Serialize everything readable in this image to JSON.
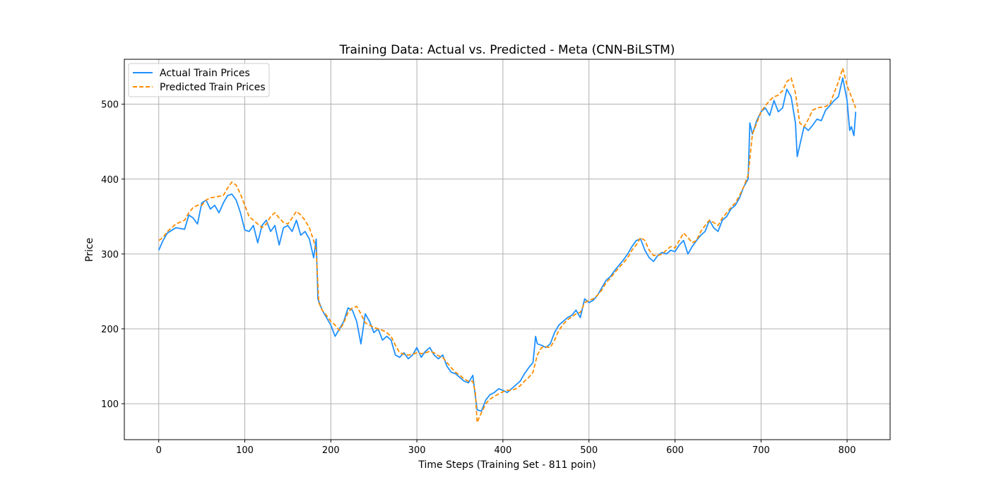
{
  "chart_data": {
    "type": "line",
    "title": "Training Data: Actual vs. Predicted - Meta (CNN-BiLSTM)",
    "xlabel": "Time Steps (Training Set - 811 poin)",
    "ylabel": "Price",
    "xlim": [
      -40,
      850
    ],
    "ylim": [
      52,
      560
    ],
    "xticks": [
      0,
      100,
      200,
      300,
      400,
      500,
      600,
      700,
      800
    ],
    "yticks": [
      100,
      200,
      300,
      400,
      500
    ],
    "grid": true,
    "legend_position": "top-left",
    "series": [
      {
        "name": "Actual Train Prices",
        "color": "#1e90ff",
        "style": "solid",
        "points": [
          [
            0,
            305
          ],
          [
            5,
            318
          ],
          [
            10,
            328
          ],
          [
            20,
            335
          ],
          [
            30,
            333
          ],
          [
            35,
            352
          ],
          [
            40,
            348
          ],
          [
            45,
            340
          ],
          [
            50,
            368
          ],
          [
            55,
            372
          ],
          [
            60,
            360
          ],
          [
            65,
            365
          ],
          [
            70,
            355
          ],
          [
            75,
            368
          ],
          [
            80,
            378
          ],
          [
            85,
            380
          ],
          [
            90,
            372
          ],
          [
            95,
            355
          ],
          [
            100,
            332
          ],
          [
            105,
            330
          ],
          [
            110,
            338
          ],
          [
            115,
            315
          ],
          [
            120,
            338
          ],
          [
            125,
            345
          ],
          [
            130,
            330
          ],
          [
            135,
            338
          ],
          [
            140,
            312
          ],
          [
            145,
            335
          ],
          [
            150,
            338
          ],
          [
            155,
            330
          ],
          [
            160,
            345
          ],
          [
            165,
            325
          ],
          [
            170,
            330
          ],
          [
            175,
            320
          ],
          [
            180,
            295
          ],
          [
            183,
            320
          ],
          [
            185,
            240
          ],
          [
            190,
            225
          ],
          [
            195,
            215
          ],
          [
            200,
            205
          ],
          [
            205,
            190
          ],
          [
            210,
            200
          ],
          [
            215,
            210
          ],
          [
            220,
            228
          ],
          [
            225,
            225
          ],
          [
            230,
            210
          ],
          [
            235,
            180
          ],
          [
            240,
            220
          ],
          [
            245,
            210
          ],
          [
            250,
            195
          ],
          [
            255,
            200
          ],
          [
            260,
            185
          ],
          [
            265,
            190
          ],
          [
            270,
            185
          ],
          [
            275,
            165
          ],
          [
            280,
            162
          ],
          [
            285,
            168
          ],
          [
            290,
            160
          ],
          [
            295,
            165
          ],
          [
            300,
            175
          ],
          [
            305,
            162
          ],
          [
            310,
            170
          ],
          [
            315,
            175
          ],
          [
            320,
            165
          ],
          [
            325,
            160
          ],
          [
            330,
            165
          ],
          [
            335,
            150
          ],
          [
            340,
            142
          ],
          [
            345,
            140
          ],
          [
            350,
            135
          ],
          [
            355,
            130
          ],
          [
            360,
            128
          ],
          [
            365,
            138
          ],
          [
            368,
            110
          ],
          [
            370,
            92
          ],
          [
            375,
            90
          ],
          [
            380,
            105
          ],
          [
            385,
            112
          ],
          [
            390,
            115
          ],
          [
            395,
            120
          ],
          [
            400,
            118
          ],
          [
            405,
            115
          ],
          [
            410,
            120
          ],
          [
            415,
            125
          ],
          [
            420,
            130
          ],
          [
            425,
            140
          ],
          [
            430,
            148
          ],
          [
            435,
            155
          ],
          [
            438,
            190
          ],
          [
            440,
            180
          ],
          [
            445,
            178
          ],
          [
            450,
            175
          ],
          [
            455,
            180
          ],
          [
            460,
            195
          ],
          [
            465,
            205
          ],
          [
            470,
            210
          ],
          [
            475,
            215
          ],
          [
            480,
            218
          ],
          [
            485,
            225
          ],
          [
            490,
            215
          ],
          [
            495,
            240
          ],
          [
            500,
            235
          ],
          [
            505,
            238
          ],
          [
            510,
            245
          ],
          [
            515,
            255
          ],
          [
            520,
            265
          ],
          [
            525,
            270
          ],
          [
            530,
            278
          ],
          [
            535,
            285
          ],
          [
            540,
            292
          ],
          [
            545,
            300
          ],
          [
            550,
            310
          ],
          [
            555,
            318
          ],
          [
            560,
            320
          ],
          [
            565,
            305
          ],
          [
            570,
            295
          ],
          [
            575,
            290
          ],
          [
            580,
            298
          ],
          [
            585,
            302
          ],
          [
            590,
            300
          ],
          [
            595,
            305
          ],
          [
            600,
            303
          ],
          [
            605,
            312
          ],
          [
            610,
            318
          ],
          [
            615,
            300
          ],
          [
            620,
            310
          ],
          [
            625,
            318
          ],
          [
            630,
            325
          ],
          [
            635,
            330
          ],
          [
            640,
            345
          ],
          [
            645,
            335
          ],
          [
            650,
            330
          ],
          [
            655,
            345
          ],
          [
            660,
            350
          ],
          [
            665,
            360
          ],
          [
            670,
            365
          ],
          [
            675,
            375
          ],
          [
            680,
            390
          ],
          [
            685,
            400
          ],
          [
            687,
            475
          ],
          [
            690,
            460
          ],
          [
            695,
            478
          ],
          [
            700,
            490
          ],
          [
            705,
            495
          ],
          [
            710,
            485
          ],
          [
            715,
            505
          ],
          [
            720,
            490
          ],
          [
            725,
            495
          ],
          [
            730,
            520
          ],
          [
            735,
            510
          ],
          [
            740,
            475
          ],
          [
            742,
            430
          ],
          [
            745,
            445
          ],
          [
            750,
            470
          ],
          [
            755,
            465
          ],
          [
            760,
            472
          ],
          [
            765,
            480
          ],
          [
            770,
            478
          ],
          [
            775,
            492
          ],
          [
            780,
            498
          ],
          [
            785,
            505
          ],
          [
            790,
            510
          ],
          [
            795,
            535
          ],
          [
            800,
            505
          ],
          [
            803,
            465
          ],
          [
            805,
            470
          ],
          [
            808,
            458
          ],
          [
            810,
            490
          ]
        ]
      },
      {
        "name": "Predicted Train Prices",
        "color": "#ff8c00",
        "style": "dashed",
        "points": [
          [
            0,
            318
          ],
          [
            5,
            322
          ],
          [
            10,
            330
          ],
          [
            20,
            340
          ],
          [
            30,
            345
          ],
          [
            35,
            355
          ],
          [
            40,
            362
          ],
          [
            45,
            365
          ],
          [
            50,
            365
          ],
          [
            55,
            372
          ],
          [
            60,
            375
          ],
          [
            65,
            376
          ],
          [
            70,
            377
          ],
          [
            75,
            378
          ],
          [
            80,
            388
          ],
          [
            85,
            396
          ],
          [
            90,
            392
          ],
          [
            95,
            380
          ],
          [
            100,
            365
          ],
          [
            105,
            350
          ],
          [
            110,
            345
          ],
          [
            115,
            340
          ],
          [
            120,
            335
          ],
          [
            125,
            340
          ],
          [
            130,
            350
          ],
          [
            135,
            355
          ],
          [
            140,
            348
          ],
          [
            145,
            342
          ],
          [
            150,
            340
          ],
          [
            155,
            348
          ],
          [
            160,
            357
          ],
          [
            165,
            352
          ],
          [
            170,
            345
          ],
          [
            175,
            335
          ],
          [
            180,
            318
          ],
          [
            183,
            305
          ],
          [
            186,
            235
          ],
          [
            190,
            225
          ],
          [
            195,
            218
          ],
          [
            200,
            210
          ],
          [
            205,
            205
          ],
          [
            210,
            198
          ],
          [
            215,
            208
          ],
          [
            220,
            222
          ],
          [
            225,
            228
          ],
          [
            230,
            230
          ],
          [
            235,
            220
          ],
          [
            240,
            208
          ],
          [
            245,
            205
          ],
          [
            250,
            202
          ],
          [
            255,
            200
          ],
          [
            260,
            198
          ],
          [
            265,
            195
          ],
          [
            270,
            190
          ],
          [
            275,
            178
          ],
          [
            280,
            168
          ],
          [
            285,
            166
          ],
          [
            290,
            165
          ],
          [
            295,
            166
          ],
          [
            300,
            168
          ],
          [
            305,
            167
          ],
          [
            310,
            168
          ],
          [
            315,
            170
          ],
          [
            320,
            168
          ],
          [
            325,
            164
          ],
          [
            330,
            162
          ],
          [
            335,
            155
          ],
          [
            340,
            148
          ],
          [
            345,
            142
          ],
          [
            350,
            138
          ],
          [
            355,
            133
          ],
          [
            360,
            130
          ],
          [
            365,
            130
          ],
          [
            368,
            115
          ],
          [
            370,
            75
          ],
          [
            375,
            88
          ],
          [
            380,
            100
          ],
          [
            385,
            106
          ],
          [
            390,
            110
          ],
          [
            395,
            113
          ],
          [
            400,
            116
          ],
          [
            405,
            118
          ],
          [
            410,
            118
          ],
          [
            415,
            120
          ],
          [
            420,
            124
          ],
          [
            425,
            130
          ],
          [
            430,
            135
          ],
          [
            435,
            142
          ],
          [
            440,
            165
          ],
          [
            445,
            175
          ],
          [
            450,
            176
          ],
          [
            455,
            175
          ],
          [
            460,
            185
          ],
          [
            465,
            198
          ],
          [
            470,
            206
          ],
          [
            475,
            212
          ],
          [
            480,
            216
          ],
          [
            485,
            220
          ],
          [
            490,
            222
          ],
          [
            495,
            235
          ],
          [
            500,
            238
          ],
          [
            505,
            240
          ],
          [
            510,
            245
          ],
          [
            515,
            252
          ],
          [
            520,
            262
          ],
          [
            525,
            268
          ],
          [
            530,
            275
          ],
          [
            535,
            282
          ],
          [
            540,
            288
          ],
          [
            545,
            295
          ],
          [
            550,
            305
          ],
          [
            555,
            312
          ],
          [
            560,
            322
          ],
          [
            565,
            318
          ],
          [
            570,
            305
          ],
          [
            575,
            298
          ],
          [
            580,
            298
          ],
          [
            585,
            300
          ],
          [
            590,
            305
          ],
          [
            595,
            310
          ],
          [
            600,
            308
          ],
          [
            605,
            318
          ],
          [
            610,
            328
          ],
          [
            615,
            322
          ],
          [
            620,
            315
          ],
          [
            625,
            318
          ],
          [
            630,
            330
          ],
          [
            635,
            338
          ],
          [
            640,
            345
          ],
          [
            645,
            342
          ],
          [
            650,
            338
          ],
          [
            655,
            348
          ],
          [
            660,
            355
          ],
          [
            665,
            362
          ],
          [
            670,
            368
          ],
          [
            675,
            378
          ],
          [
            680,
            390
          ],
          [
            685,
            405
          ],
          [
            690,
            460
          ],
          [
            695,
            475
          ],
          [
            700,
            490
          ],
          [
            705,
            498
          ],
          [
            710,
            505
          ],
          [
            715,
            510
          ],
          [
            720,
            512
          ],
          [
            725,
            518
          ],
          [
            730,
            530
          ],
          [
            735,
            535
          ],
          [
            740,
            515
          ],
          [
            745,
            475
          ],
          [
            750,
            470
          ],
          [
            755,
            480
          ],
          [
            760,
            492
          ],
          [
            765,
            495
          ],
          [
            770,
            496
          ],
          [
            775,
            497
          ],
          [
            780,
            500
          ],
          [
            785,
            515
          ],
          [
            790,
            530
          ],
          [
            795,
            548
          ],
          [
            800,
            525
          ],
          [
            805,
            510
          ],
          [
            810,
            495
          ]
        ]
      }
    ]
  }
}
